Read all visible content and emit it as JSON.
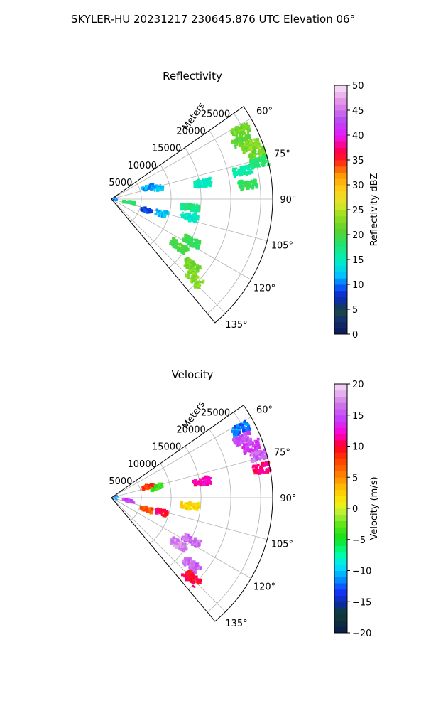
{
  "suptitle": "SKYLER-HU  20231217  230645.876 UTC Elevation 06°",
  "range_unit_label": "Meters",
  "chart_data": [
    {
      "type": "heatmap",
      "projection": "polar-sector",
      "title": "Reflectivity",
      "range_ticks": [
        "5000",
        "10000",
        "15000",
        "20000",
        "25000"
      ],
      "range_values": [
        5000,
        10000,
        15000,
        20000,
        25000
      ],
      "range_max": 27000,
      "azimuth_ticks": [
        "60°",
        "75°",
        "90°",
        "105°",
        "120°",
        "135°"
      ],
      "azimuth_values": [
        60,
        75,
        90,
        105,
        120,
        135
      ],
      "azimuth_range": [
        55,
        140
      ],
      "colorbar": {
        "label": "Reflectivity dBZ",
        "min": 0,
        "max": 50,
        "ticks": [
          "0",
          "5",
          "10",
          "15",
          "20",
          "25",
          "30",
          "35",
          "40",
          "45",
          "50"
        ],
        "tick_values": [
          0,
          5,
          10,
          15,
          20,
          25,
          30,
          35,
          40,
          45,
          50
        ]
      },
      "echoes": [
        {
          "az": 62,
          "r": 24500,
          "value": 22
        },
        {
          "az": 66,
          "r": 24000,
          "value": 21
        },
        {
          "az": 69,
          "r": 25000,
          "value": 23
        },
        {
          "az": 73,
          "r": 25800,
          "value": 22
        },
        {
          "az": 76,
          "r": 25600,
          "value": 18
        },
        {
          "az": 80,
          "r": 15500,
          "value": 15
        },
        {
          "az": 78,
          "r": 22500,
          "value": 16
        },
        {
          "az": 84,
          "r": 23000,
          "value": 19
        },
        {
          "az": 73,
          "r": 6500,
          "value": 11
        },
        {
          "az": 77,
          "r": 7800,
          "value": 12
        },
        {
          "az": 100,
          "r": 3000,
          "value": 18
        },
        {
          "az": 108,
          "r": 6200,
          "value": 9
        },
        {
          "az": 106,
          "r": 8800,
          "value": 12
        },
        {
          "az": 118,
          "r": 15200,
          "value": 19
        },
        {
          "az": 125,
          "r": 13800,
          "value": 20
        },
        {
          "az": 130,
          "r": 17500,
          "value": 22
        },
        {
          "az": 134,
          "r": 19200,
          "value": 23
        },
        {
          "az": 103,
          "r": 13500,
          "value": 15
        },
        {
          "az": 96,
          "r": 13200,
          "value": 17
        }
      ]
    },
    {
      "type": "heatmap",
      "projection": "polar-sector",
      "title": "Velocity",
      "range_ticks": [
        "5000",
        "10000",
        "15000",
        "20000",
        "25000"
      ],
      "range_values": [
        5000,
        10000,
        15000,
        20000,
        25000
      ],
      "range_max": 27000,
      "azimuth_ticks": [
        "60°",
        "75°",
        "90°",
        "105°",
        "120°",
        "135°"
      ],
      "azimuth_values": [
        60,
        75,
        90,
        105,
        120,
        135
      ],
      "azimuth_range": [
        55,
        140
      ],
      "colorbar": {
        "label": "Velocity (m/s)",
        "min": -20,
        "max": 20,
        "ticks": [
          "−20",
          "−15",
          "−10",
          "−5",
          "0",
          "5",
          "10",
          "15",
          "20"
        ],
        "tick_values": [
          -20,
          -15,
          -10,
          -5,
          0,
          5,
          10,
          15,
          20
        ]
      },
      "echoes": [
        {
          "az": 62,
          "r": 24500,
          "value": -12
        },
        {
          "az": 66,
          "r": 24000,
          "value": 15
        },
        {
          "az": 70,
          "r": 25000,
          "value": 14
        },
        {
          "az": 74,
          "r": 25800,
          "value": 16
        },
        {
          "az": 79,
          "r": 25600,
          "value": 11
        },
        {
          "az": 80,
          "r": 15500,
          "value": 12
        },
        {
          "az": 73,
          "r": 6500,
          "value": 8
        },
        {
          "az": 77,
          "r": 7800,
          "value": -4
        },
        {
          "az": 100,
          "r": 3000,
          "value": 15
        },
        {
          "az": 108,
          "r": 6200,
          "value": 7
        },
        {
          "az": 106,
          "r": 8800,
          "value": 10
        },
        {
          "az": 118,
          "r": 15200,
          "value": 16
        },
        {
          "az": 125,
          "r": 13800,
          "value": 17
        },
        {
          "az": 130,
          "r": 17500,
          "value": 16
        },
        {
          "az": 135,
          "r": 19000,
          "value": 10
        },
        {
          "az": 96,
          "r": 13200,
          "value": 2
        }
      ]
    }
  ]
}
